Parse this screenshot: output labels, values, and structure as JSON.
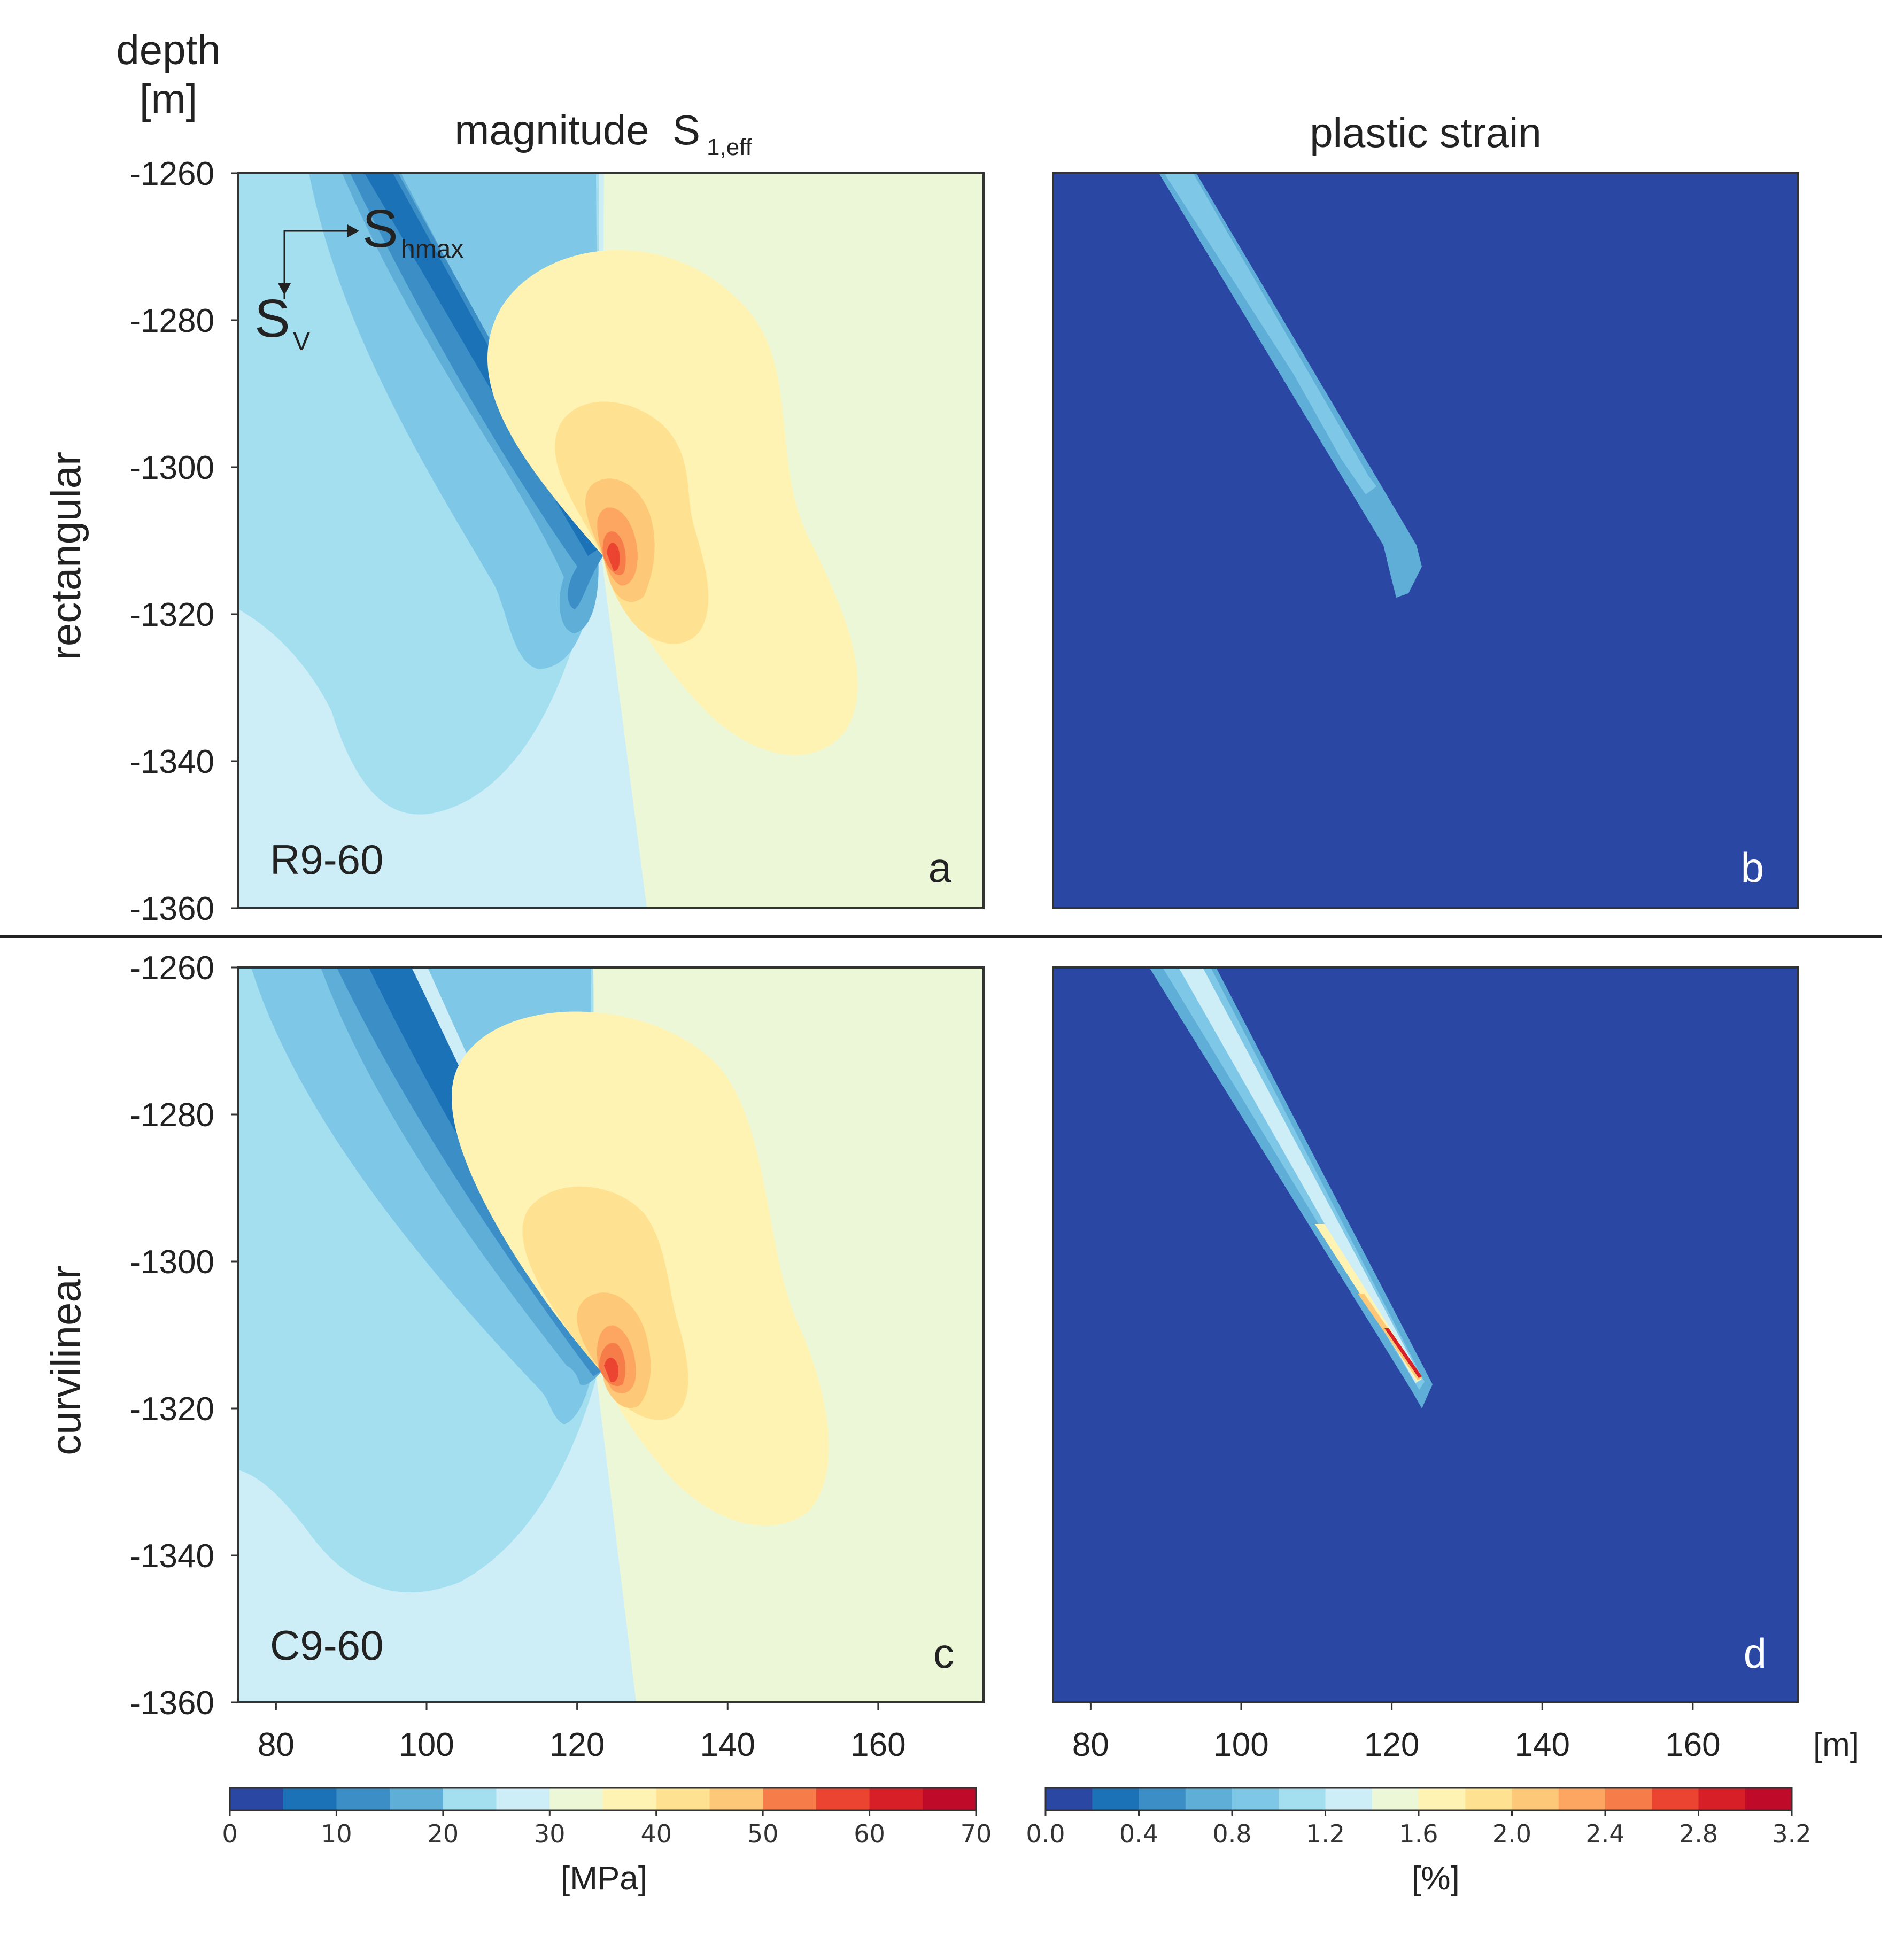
{
  "chart_data": {
    "type": "heatmap",
    "y_axis_label": [
      "depth",
      "[m]"
    ],
    "x_unit_label": "[m]",
    "column_titles": [
      {
        "main": "magnitude  S",
        "sub": "1,eff"
      },
      {
        "main": "plastic strain",
        "sub": ""
      }
    ],
    "row_labels": [
      "rectangular",
      "curvilinear"
    ],
    "xlim": [
      75,
      174
    ],
    "ylim": [
      -1360,
      -1260
    ],
    "x_ticks": [
      80,
      100,
      120,
      140,
      160
    ],
    "y_ticks": [
      -1260,
      -1280,
      -1300,
      -1320,
      -1340,
      -1360
    ],
    "stress_axes_annotation": {
      "horizontal": "S",
      "horizontal_sub": "hmax",
      "vertical": "S",
      "vertical_sub": "V"
    },
    "panels": [
      {
        "letter": "a",
        "case": "R9-60",
        "quantity": "magnitude S1,eff",
        "fault_top_x": 95,
        "fault_tip": [
          124,
          -1314
        ]
      },
      {
        "letter": "b",
        "case": "",
        "quantity": "plastic strain",
        "fault_top_x": 95,
        "fault_tip": [
          124,
          -1314
        ]
      },
      {
        "letter": "c",
        "case": "C9-60",
        "quantity": "magnitude S1,eff",
        "fault_top_x": 90,
        "fault_tip": [
          124,
          -1316
        ]
      },
      {
        "letter": "d",
        "case": "",
        "quantity": "plastic strain",
        "fault_top_x": 90,
        "fault_tip": [
          124,
          -1316
        ]
      }
    ],
    "colorbars": [
      {
        "unit": "[MPa]",
        "min": 0,
        "max": 70,
        "levels": 14,
        "ticks": [
          "0",
          "10",
          "20",
          "30",
          "40",
          "50",
          "60",
          "70"
        ]
      },
      {
        "unit": "[%]",
        "min": 0.0,
        "max": 3.2,
        "levels": 16,
        "ticks": [
          "0.0",
          "0.4",
          "0.8",
          "1.2",
          "1.6",
          "2.0",
          "2.4",
          "2.8",
          "3.2"
        ]
      }
    ],
    "colors": [
      "#2b47a4",
      "#1c72b6",
      "#3b8fc6",
      "#5faed8",
      "#7fc7e6",
      "#a4dff0",
      "#cdedf7",
      "#ebf7d7",
      "#fff3b3",
      "#fee292",
      "#fdc877",
      "#fda661",
      "#f67d4a",
      "#eb4532",
      "#d71f27",
      "#bf0a2a"
    ]
  }
}
